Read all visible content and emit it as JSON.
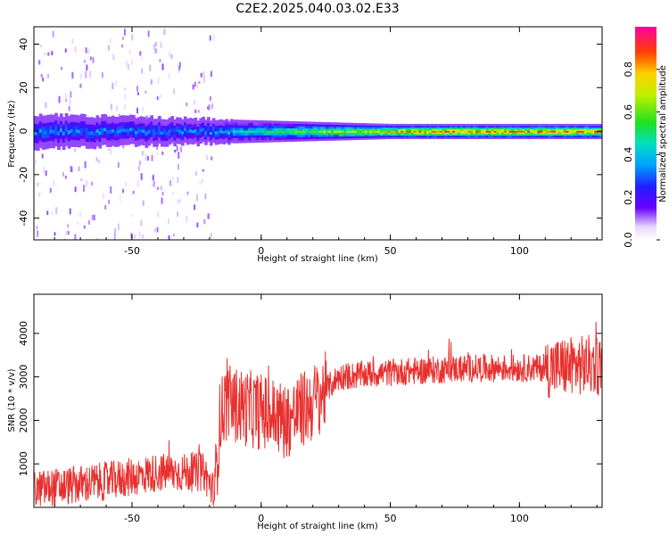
{
  "title": "C2E2.2025.040.03.02.E33",
  "chart_data": [
    {
      "type": "heatmap",
      "xlabel": "Height of straight line (km)",
      "ylabel": "Frequency (Hz)",
      "xlim": [
        -88,
        132
      ],
      "ylim": [
        -50,
        48
      ],
      "xticks": [
        "-50",
        "0",
        "50",
        "100"
      ],
      "yticks": [
        "-40",
        "-20",
        "0",
        "20",
        "40"
      ],
      "colorbar": {
        "label": "Normalized spectral amplitude",
        "range": [
          0,
          1
        ],
        "ticks": [
          "0.0",
          "0.2",
          "0.4",
          "0.6",
          "0.8"
        ]
      },
      "band": {
        "center_hz": 0,
        "halfwidth_hz_start": 7,
        "halfwidth_hz_end": 3,
        "peak_amplitude_start": 0.35,
        "peak_amplitude_end": 0.9
      },
      "grid": false,
      "legend": "colorbar-right"
    },
    {
      "type": "line",
      "xlabel": "Height of straight line (km)",
      "ylabel": "SNR (10 * v/v)",
      "xlim": [
        -88,
        132
      ],
      "ylim": [
        0,
        4900
      ],
      "xticks": [
        "-50",
        "0",
        "50",
        "100"
      ],
      "yticks": [
        "1000",
        "2000",
        "3000",
        "4000"
      ],
      "color": "#e8302e",
      "trend": [
        {
          "x": -88,
          "y": 400
        },
        {
          "x": -60,
          "y": 600
        },
        {
          "x": -40,
          "y": 800
        },
        {
          "x": -22,
          "y": 800
        },
        {
          "x": -18,
          "y": 300
        },
        {
          "x": -16,
          "y": 2000
        },
        {
          "x": -14,
          "y": 2400
        },
        {
          "x": 0,
          "y": 2200
        },
        {
          "x": 10,
          "y": 2000
        },
        {
          "x": 20,
          "y": 2400
        },
        {
          "x": 30,
          "y": 3000
        },
        {
          "x": 50,
          "y": 3100
        },
        {
          "x": 80,
          "y": 3200
        },
        {
          "x": 110,
          "y": 3200
        },
        {
          "x": 132,
          "y": 3300
        }
      ],
      "grid": false
    }
  ]
}
